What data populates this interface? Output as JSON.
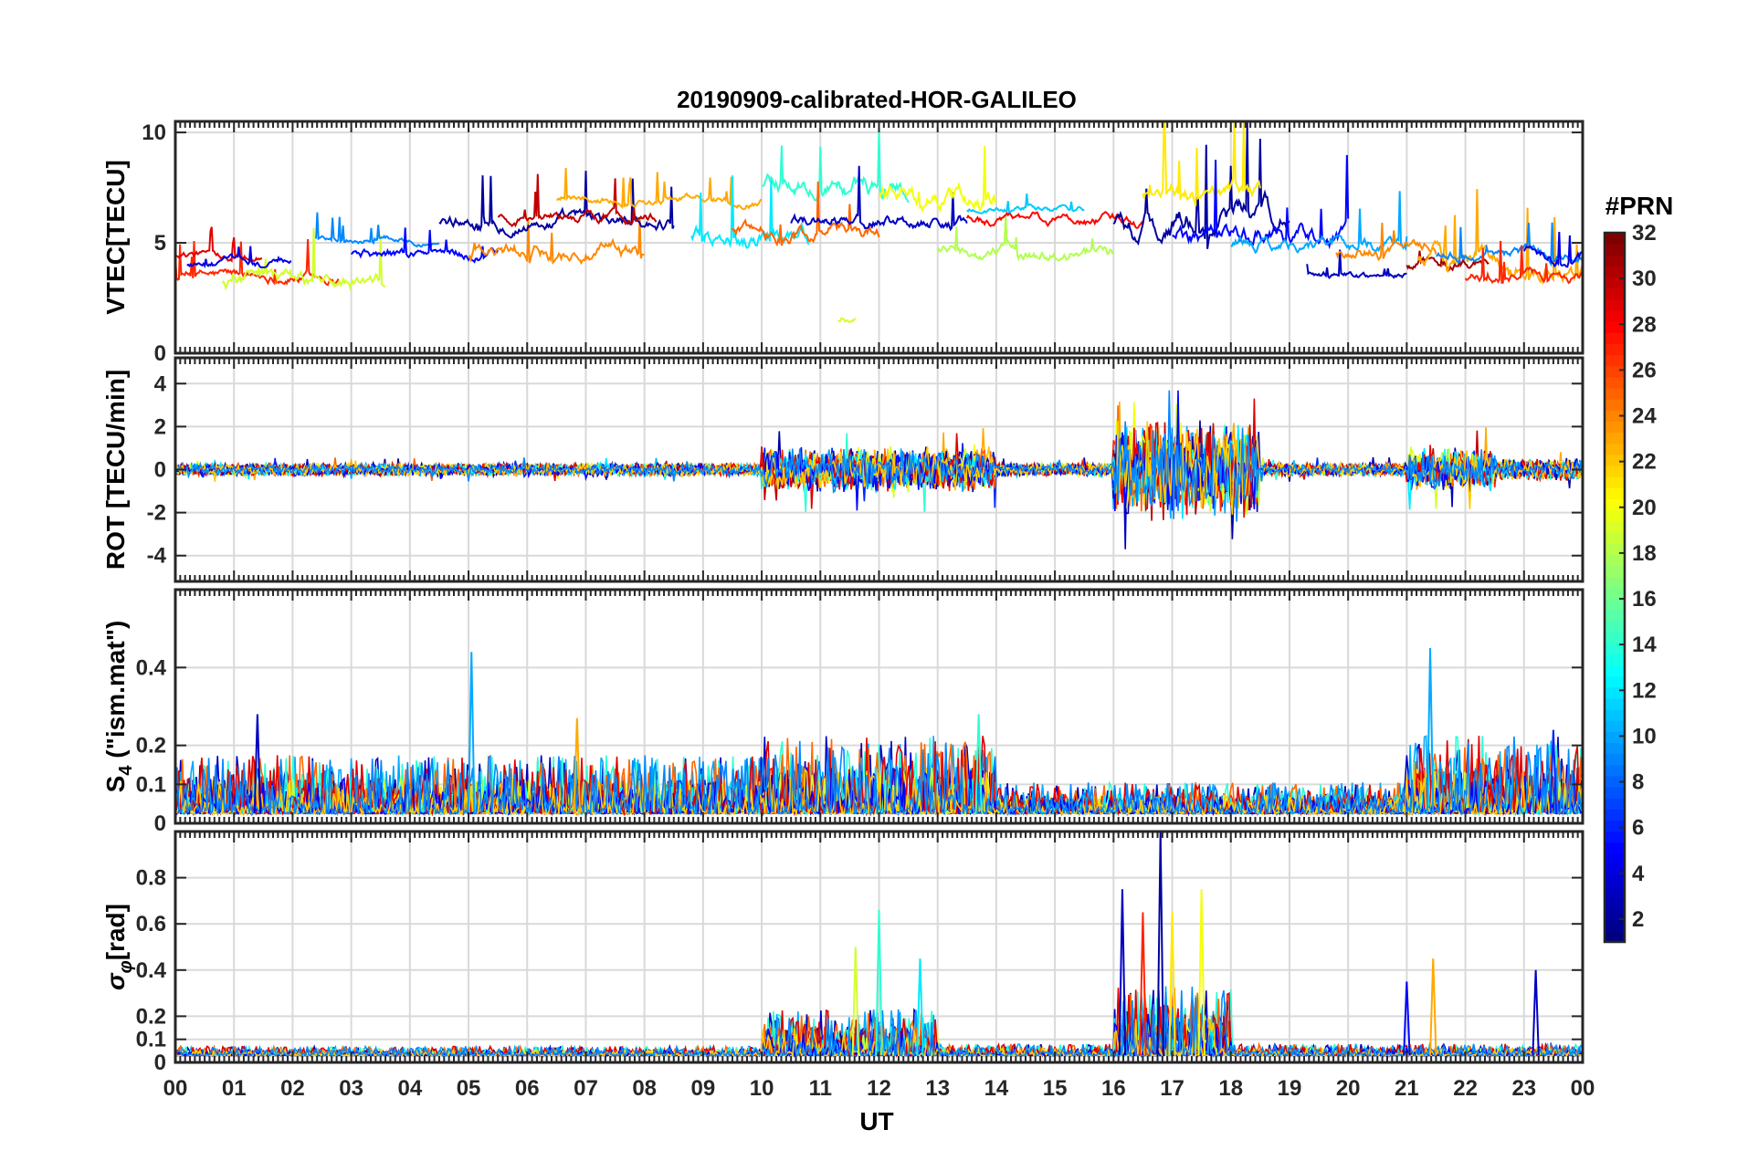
{
  "chart_data": {
    "type": "line",
    "title": "20190909-calibrated-HOR-GALILEO",
    "xlabel": "UT",
    "x_ticks": [
      "00",
      "01",
      "02",
      "03",
      "04",
      "05",
      "06",
      "07",
      "08",
      "09",
      "10",
      "11",
      "12",
      "13",
      "14",
      "15",
      "16",
      "17",
      "18",
      "19",
      "20",
      "21",
      "22",
      "23",
      "00"
    ],
    "xlim": [
      0,
      24
    ],
    "grid": true,
    "colorbar": {
      "title": "#PRN",
      "colormap": "jet",
      "range": [
        1,
        32
      ],
      "ticks": [
        "2",
        "4",
        "6",
        "8",
        "10",
        "12",
        "14",
        "16",
        "18",
        "20",
        "22",
        "24",
        "26",
        "28",
        "30",
        "32"
      ]
    },
    "panels": [
      {
        "ylabel": "VTEC[TECU]",
        "ylim": [
          0,
          10.5
        ],
        "yticks": [
          0,
          5,
          10
        ],
        "ytick_labels": [
          "0",
          "5",
          "10"
        ],
        "series_segments": [
          {
            "prn": 27,
            "start": 0.0,
            "end": 2.8,
            "base": 3.5,
            "amp": 0.8
          },
          {
            "prn": 29,
            "start": 0.0,
            "end": 1.5,
            "base": 4.5,
            "amp": 0.6
          },
          {
            "prn": 19,
            "start": 0.8,
            "end": 3.6,
            "base": 3.0,
            "amp": 1.2
          },
          {
            "prn": 4,
            "start": 0.2,
            "end": 2.0,
            "base": 4.0,
            "amp": 0.6
          },
          {
            "prn": 9,
            "start": 2.4,
            "end": 4.5,
            "base": 5.2,
            "amp": 0.5
          },
          {
            "prn": 5,
            "start": 3.0,
            "end": 5.5,
            "base": 4.5,
            "amp": 0.8
          },
          {
            "prn": 24,
            "start": 5.0,
            "end": 8.0,
            "base": 4.5,
            "amp": 1.2
          },
          {
            "prn": 2,
            "start": 4.5,
            "end": 8.5,
            "base": 6.0,
            "amp": 1.0
          },
          {
            "prn": 30,
            "start": 5.5,
            "end": 8.2,
            "base": 6.2,
            "amp": 0.8
          },
          {
            "prn": 23,
            "start": 6.5,
            "end": 10.0,
            "base": 7.0,
            "amp": 0.6
          },
          {
            "prn": 12,
            "start": 8.8,
            "end": 10.8,
            "base": 5.5,
            "amp": 1.5
          },
          {
            "prn": 14,
            "start": 10.0,
            "end": 12.5,
            "base": 7.5,
            "amp": 1.5
          },
          {
            "prn": 25,
            "start": 9.5,
            "end": 12.0,
            "base": 5.5,
            "amp": 1.2
          },
          {
            "prn": 3,
            "start": 10.5,
            "end": 13.5,
            "base": 6.0,
            "amp": 1.0
          },
          {
            "prn": 19,
            "start": 11.3,
            "end": 11.6,
            "base": 1.5,
            "amp": 0.8
          },
          {
            "prn": 20,
            "start": 12.0,
            "end": 14.0,
            "base": 7.0,
            "amp": 1.5
          },
          {
            "prn": 18,
            "start": 13.0,
            "end": 16.0,
            "base": 4.5,
            "amp": 1.0
          },
          {
            "prn": 11,
            "start": 13.5,
            "end": 15.5,
            "base": 6.5,
            "amp": 0.5
          },
          {
            "prn": 28,
            "start": 13.5,
            "end": 16.5,
            "base": 6.0,
            "amp": 0.8
          },
          {
            "prn": 2,
            "start": 16.0,
            "end": 19.0,
            "base": 6.0,
            "amp": 2.0
          },
          {
            "prn": 21,
            "start": 16.5,
            "end": 18.5,
            "base": 7.0,
            "amp": 1.5
          },
          {
            "prn": 5,
            "start": 17.0,
            "end": 20.0,
            "base": 5.5,
            "amp": 1.5
          },
          {
            "prn": 10,
            "start": 18.0,
            "end": 21.0,
            "base": 5.0,
            "amp": 1.0
          },
          {
            "prn": 3,
            "start": 19.3,
            "end": 21.0,
            "base": 3.5,
            "amp": 0.5
          },
          {
            "prn": 24,
            "start": 19.8,
            "end": 21.5,
            "base": 4.5,
            "amp": 1.0
          },
          {
            "prn": 31,
            "start": 21.0,
            "end": 22.4,
            "base": 4.0,
            "amp": 0.8
          },
          {
            "prn": 23,
            "start": 21.2,
            "end": 24.0,
            "base": 4.0,
            "amp": 1.5
          },
          {
            "prn": 9,
            "start": 21.5,
            "end": 24.0,
            "base": 4.5,
            "amp": 0.8
          },
          {
            "prn": 4,
            "start": 23.0,
            "end": 24.0,
            "base": 4.5,
            "amp": 1.0
          },
          {
            "prn": 27,
            "start": 22.0,
            "end": 24.0,
            "base": 3.5,
            "amp": 0.8
          }
        ]
      },
      {
        "ylabel": "ROT [TECU/min]",
        "ylim": [
          -5.2,
          5.2
        ],
        "yticks": [
          -4,
          -2,
          0,
          2,
          4
        ],
        "ytick_labels": [
          "-4",
          "-2",
          "0",
          "2",
          "4"
        ],
        "activity": [
          {
            "start": 0.0,
            "end": 10.0,
            "amp": 0.6
          },
          {
            "start": 10.0,
            "end": 14.0,
            "amp": 2.0
          },
          {
            "start": 14.0,
            "end": 16.0,
            "amp": 0.6
          },
          {
            "start": 16.0,
            "end": 18.5,
            "amp": 4.5
          },
          {
            "start": 18.5,
            "end": 21.0,
            "amp": 0.6
          },
          {
            "start": 21.0,
            "end": 22.5,
            "amp": 2.0
          },
          {
            "start": 22.5,
            "end": 24.0,
            "amp": 1.0
          }
        ]
      },
      {
        "ylabel": "S4 (\"ism.mat\")",
        "ylabel_main": "S",
        "ylabel_sub": "4",
        "ylabel_rest": " (\"ism.mat\")",
        "ylim": [
          0,
          0.6
        ],
        "yticks": [
          0,
          0.1,
          0.2,
          0.4
        ],
        "ytick_labels": [
          "0",
          "0.1",
          "0.2",
          "0.4"
        ],
        "activity": [
          {
            "start": 0.0,
            "end": 10.0,
            "amp": 0.15
          },
          {
            "start": 10.0,
            "end": 14.0,
            "amp": 0.2
          },
          {
            "start": 14.0,
            "end": 21.0,
            "amp": 0.08
          },
          {
            "start": 21.0,
            "end": 24.0,
            "amp": 0.2
          }
        ],
        "spikes": [
          {
            "x": 1.4,
            "y": 0.28,
            "prn": 3
          },
          {
            "x": 5.05,
            "y": 0.44,
            "prn": 10
          },
          {
            "x": 6.85,
            "y": 0.27,
            "prn": 23
          },
          {
            "x": 13.7,
            "y": 0.28,
            "prn": 14
          },
          {
            "x": 21.4,
            "y": 0.45,
            "prn": 10
          },
          {
            "x": 23.5,
            "y": 0.24,
            "prn": 6
          }
        ]
      },
      {
        "ylabel": "σφ[rad]",
        "ylabel_main": "σ",
        "ylabel_sub": "φ",
        "ylabel_rest": "[rad]",
        "ylim": [
          0,
          1.0
        ],
        "yticks": [
          0,
          0.1,
          0.2,
          0.4,
          0.6,
          0.8
        ],
        "ytick_labels": [
          "0",
          "0.1",
          "0.2",
          "0.4",
          "0.6",
          "0.8"
        ],
        "activity": [
          {
            "start": 0.0,
            "end": 10.0,
            "amp": 0.04
          },
          {
            "start": 10.0,
            "end": 13.0,
            "amp": 0.2
          },
          {
            "start": 13.0,
            "end": 16.0,
            "amp": 0.05
          },
          {
            "start": 16.0,
            "end": 18.0,
            "amp": 0.3
          },
          {
            "start": 18.0,
            "end": 24.0,
            "amp": 0.05
          }
        ],
        "spikes": [
          {
            "x": 11.6,
            "y": 0.5,
            "prn": 19
          },
          {
            "x": 12.0,
            "y": 0.66,
            "prn": 14
          },
          {
            "x": 12.7,
            "y": 0.45,
            "prn": 12
          },
          {
            "x": 16.15,
            "y": 0.75,
            "prn": 3
          },
          {
            "x": 16.5,
            "y": 0.65,
            "prn": 27
          },
          {
            "x": 16.8,
            "y": 1.0,
            "prn": 2
          },
          {
            "x": 17.0,
            "y": 0.65,
            "prn": 21
          },
          {
            "x": 17.5,
            "y": 0.75,
            "prn": 20
          },
          {
            "x": 21.0,
            "y": 0.35,
            "prn": 5
          },
          {
            "x": 21.45,
            "y": 0.45,
            "prn": 23
          },
          {
            "x": 23.2,
            "y": 0.4,
            "prn": 3
          }
        ]
      }
    ]
  }
}
